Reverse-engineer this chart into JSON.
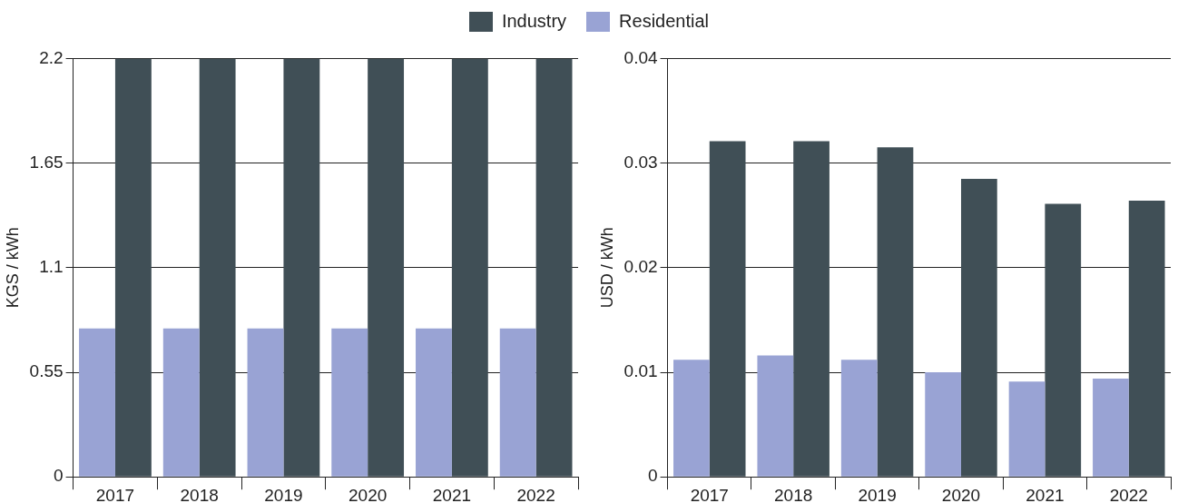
{
  "chart_data": [
    {
      "type": "bar",
      "ylabel": "KGS / kWh",
      "categories": [
        "2017",
        "2018",
        "2019",
        "2020",
        "2021",
        "2022"
      ],
      "series": [
        {
          "name": "Residential",
          "color": "#99a3d4",
          "values": [
            0.78,
            0.78,
            0.78,
            0.78,
            0.78,
            0.78
          ]
        },
        {
          "name": "Industry",
          "color": "#404f56",
          "values": [
            2.2,
            2.2,
            2.2,
            2.2,
            2.2,
            2.2
          ]
        }
      ],
      "ylim": [
        0,
        2.2
      ],
      "yticks": [
        0,
        0.55,
        1.1,
        1.65,
        2.2
      ],
      "grid": "y",
      "legend": "top"
    },
    {
      "type": "bar",
      "ylabel": "USD / kWh",
      "categories": [
        "2017",
        "2018",
        "2019",
        "2020",
        "2021",
        "2022"
      ],
      "series": [
        {
          "color": "#99a3d4",
          "values": [
            0.0112,
            0.0116,
            0.0112,
            0.01,
            0.0091,
            0.0094
          ]
        },
        {
          "color": "#404f56",
          "values": [
            0.0321,
            0.0321,
            0.0315,
            0.0285,
            0.0261,
            0.0264
          ]
        }
      ],
      "ylim": [
        0,
        0.04
      ],
      "yticks": [
        0,
        0.01,
        0.02,
        0.03,
        0.04
      ],
      "grid": "y"
    }
  ]
}
